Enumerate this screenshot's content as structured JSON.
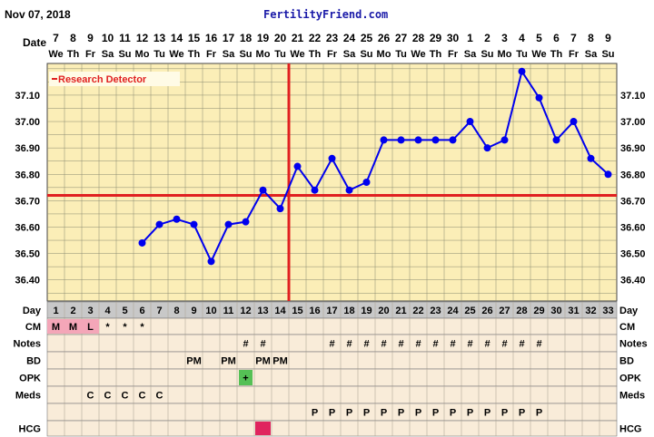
{
  "header": {
    "date": "Nov 07, 2018",
    "site": "FertilityFriend.com"
  },
  "legend": {
    "research_detector": "Research Detector"
  },
  "row_labels": {
    "date": "Date",
    "day": "Day",
    "cm": "CM",
    "notes": "Notes",
    "bd": "BD",
    "opk": "OPK",
    "meds": "Meds",
    "hcg": "HCG"
  },
  "chart_data": {
    "type": "line",
    "title": "",
    "dates": [
      "7",
      "8",
      "9",
      "10",
      "11",
      "12",
      "13",
      "14",
      "15",
      "16",
      "17",
      "18",
      "19",
      "20",
      "21",
      "22",
      "23",
      "24",
      "25",
      "26",
      "27",
      "28",
      "29",
      "30",
      "1",
      "2",
      "3",
      "4",
      "5",
      "6",
      "7",
      "8",
      "9"
    ],
    "weekdays": [
      "We",
      "Th",
      "Fr",
      "Sa",
      "Su",
      "Mo",
      "Tu",
      "We",
      "Th",
      "Fr",
      "Sa",
      "Su",
      "Mo",
      "Tu",
      "We",
      "Th",
      "Fr",
      "Sa",
      "Su",
      "Mo",
      "Tu",
      "We",
      "Th",
      "Fr",
      "Sa",
      "Su",
      "Mo",
      "Tu",
      "We",
      "Th",
      "Fr",
      "Sa",
      "Su"
    ],
    "cycle_days": [
      1,
      2,
      3,
      4,
      5,
      6,
      7,
      8,
      9,
      10,
      11,
      12,
      13,
      14,
      15,
      16,
      17,
      18,
      19,
      20,
      21,
      22,
      23,
      24,
      25,
      26,
      27,
      28,
      29,
      30,
      31,
      32,
      33
    ],
    "temperatures": [
      null,
      null,
      null,
      null,
      null,
      36.54,
      36.61,
      36.63,
      36.61,
      36.47,
      36.61,
      36.62,
      36.74,
      36.67,
      36.83,
      36.74,
      36.86,
      36.74,
      36.77,
      36.93,
      36.93,
      36.93,
      36.93,
      36.93,
      37.0,
      36.9,
      36.93,
      37.19,
      37.09,
      36.93,
      37.0,
      36.86,
      36.8
    ],
    "y_ticks": [
      "37.10",
      "37.00",
      "36.90",
      "36.80",
      "36.70",
      "36.60",
      "36.50",
      "36.40"
    ],
    "ylim": [
      36.32,
      37.22
    ],
    "coverline": 36.72,
    "ovulation_day": 14,
    "grid": true,
    "colors": {
      "line": "#0000ee",
      "coverline": "#e02020",
      "grid_bg": "#fbeeb7",
      "lower_bg": "#f9ecd9",
      "day_row": "#c8c8c8",
      "cm_menses": "#f4a6b8",
      "opk_positive": "#55c055",
      "hcg_positive": "#e0245e"
    },
    "cm": [
      "M",
      "M",
      "L",
      "*",
      "*",
      "*",
      "",
      "",
      "",
      "",
      "",
      "",
      "",
      "",
      "",
      "",
      "",
      "",
      "",
      "",
      "",
      "",
      "",
      "",
      "",
      "",
      "",
      "",
      "",
      "",
      "",
      "",
      ""
    ],
    "notes": [
      "",
      "",
      "",
      "",
      "",
      "",
      "",
      "",
      "",
      "",
      "",
      "#",
      "#",
      "",
      "",
      "",
      "#",
      "#",
      "#",
      "#",
      "#",
      "#",
      "#",
      "#",
      "#",
      "#",
      "#",
      "#",
      "#",
      "",
      "",
      "",
      ""
    ],
    "bd": [
      "",
      "",
      "",
      "",
      "",
      "",
      "",
      "",
      "PM",
      "",
      "PM",
      "",
      "PM",
      "PM",
      "",
      "",
      "",
      "",
      "",
      "",
      "",
      "",
      "",
      "",
      "",
      "",
      "",
      "",
      "",
      "",
      "",
      "",
      ""
    ],
    "opk": [
      "",
      "",
      "",
      "",
      "",
      "",
      "",
      "",
      "",
      "",
      "",
      "+",
      "",
      "",
      "",
      "",
      "",
      "",
      "",
      "",
      "",
      "",
      "",
      "",
      "",
      "",
      "",
      "",
      "",
      "",
      "",
      "",
      ""
    ],
    "meds1": [
      "",
      "",
      "C",
      "C",
      "C",
      "C",
      "C",
      "",
      "",
      "",
      "",
      "",
      "",
      "",
      "",
      "",
      "",
      "",
      "",
      "",
      "",
      "",
      "",
      "",
      "",
      "",
      "",
      "",
      "",
      "",
      "",
      "",
      ""
    ],
    "meds2": [
      "",
      "",
      "",
      "",
      "",
      "",
      "",
      "",
      "",
      "",
      "",
      "",
      "",
      "",
      "",
      "P",
      "P",
      "P",
      "P",
      "P",
      "P",
      "P",
      "P",
      "P",
      "P",
      "P",
      "P",
      "P",
      "P",
      "",
      "",
      "",
      ""
    ],
    "hcg": [
      false,
      false,
      false,
      false,
      false,
      false,
      false,
      false,
      false,
      false,
      false,
      false,
      true,
      false,
      false,
      false,
      false,
      false,
      false,
      false,
      false,
      false,
      false,
      false,
      false,
      false,
      false,
      false,
      false,
      false,
      false,
      false,
      false
    ]
  }
}
